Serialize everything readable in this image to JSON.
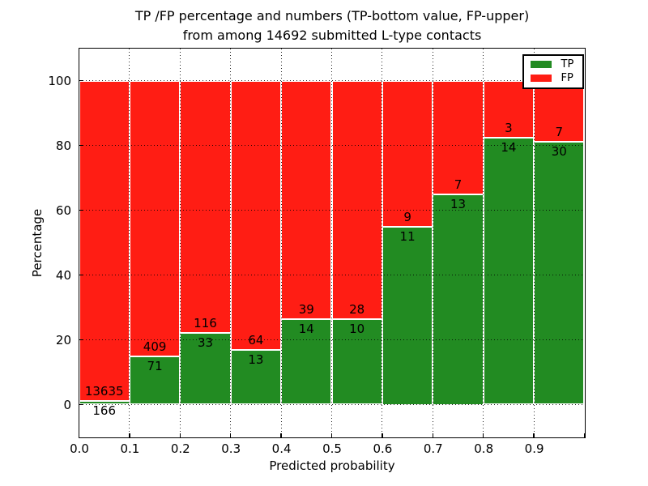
{
  "figure": {
    "title_line1": "TP /FP percentage and numbers (TP-bottom value, FP-upper)",
    "title_line2": "from among 14692 submitted L-type contacts"
  },
  "legend": {
    "position": "upper right",
    "items": [
      {
        "label": "TP",
        "color": "#228B22"
      },
      {
        "label": "FP",
        "color": "#FF1D14"
      }
    ]
  },
  "chart_data": {
    "type": "bar",
    "stacked": true,
    "normalized_to_percent": true,
    "title": "TP /FP percentage and numbers (TP-bottom value, FP-upper) from among 14692 submitted L-type contacts",
    "xlabel": "Predicted probability",
    "ylabel": "Percentage",
    "xlim": [
      0.0,
      1.0
    ],
    "ylim": [
      -10,
      110
    ],
    "grid": "dotted",
    "bin_edges": [
      0.0,
      0.1,
      0.2,
      0.3,
      0.4,
      0.5,
      0.6,
      0.7,
      0.8,
      0.9,
      1.0
    ],
    "x_tick_labels": [
      "0.0",
      "0.1",
      "0.2",
      "0.3",
      "0.4",
      "0.5",
      "0.6",
      "0.7",
      "0.8",
      "0.9"
    ],
    "y_ticks": [
      0,
      20,
      40,
      60,
      80,
      100
    ],
    "series": [
      {
        "name": "TP",
        "color": "#228B22",
        "counts": [
          166,
          71,
          33,
          13,
          14,
          10,
          11,
          13,
          14,
          30
        ]
      },
      {
        "name": "FP",
        "color": "#FF1D14",
        "counts": [
          13635,
          409,
          116,
          64,
          39,
          28,
          9,
          7,
          3,
          7
        ]
      }
    ],
    "tp_percent": [
      1.2,
      14.8,
      22.1,
      16.9,
      26.4,
      26.3,
      55.0,
      65.0,
      82.4,
      81.1
    ],
    "total_contacts": 14692
  }
}
